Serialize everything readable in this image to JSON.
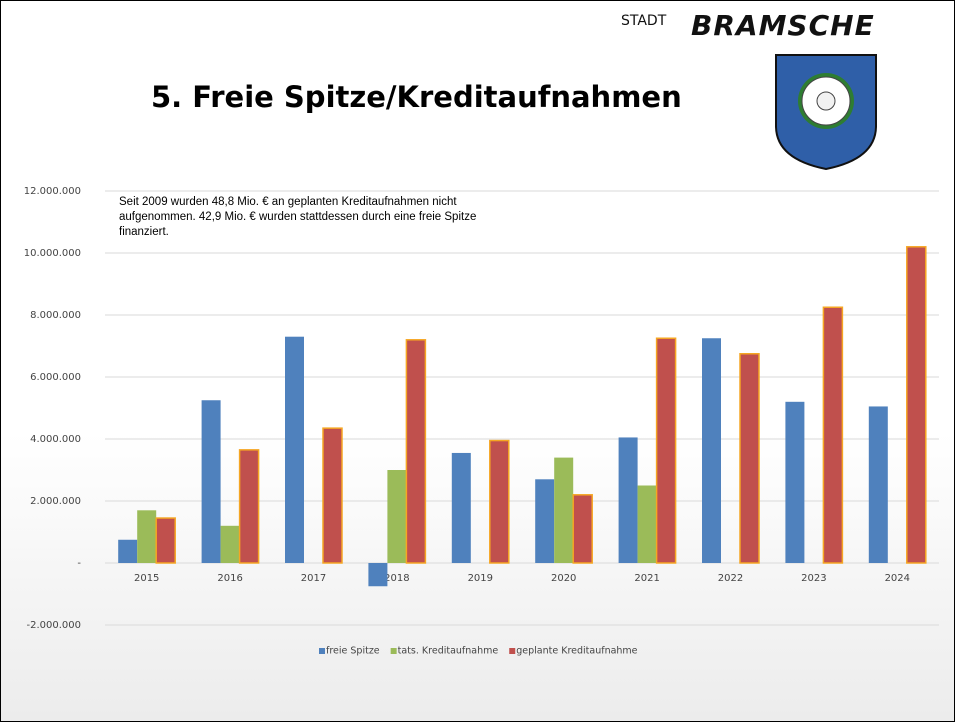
{
  "header": {
    "title": "5. Freie Spitze/Kreditaufnahmen",
    "logo_small": "STADT",
    "logo_large": "BRAMSCHE"
  },
  "chart_data": {
    "type": "bar",
    "annotation": "Seit 2009 wurden 48,8 Mio. € an geplanten Kreditaufnahmen nicht aufgenommen. 42,9 Mio. € wurden stattdessen durch eine freie Spitze finanziert.",
    "categories": [
      "2015",
      "2016",
      "2017",
      "2018",
      "2019",
      "2020",
      "2021",
      "2022",
      "2023",
      "2024"
    ],
    "series": [
      {
        "name": "freie Spitze",
        "color": "#4f81bd",
        "values": [
          750000,
          5250000,
          7300000,
          -750000,
          3550000,
          2700000,
          4050000,
          7250000,
          5200000,
          5050000
        ]
      },
      {
        "name": "tats. Kreditaufnahme",
        "color": "#9bbb59",
        "values": [
          1700000,
          1200000,
          null,
          3000000,
          null,
          3400000,
          2500000,
          null,
          null,
          null
        ]
      },
      {
        "name": "geplante Kreditaufnahme",
        "color": "#c0504d",
        "border": "#f5a623",
        "values": [
          1450000,
          3650000,
          4350000,
          7200000,
          3950000,
          2200000,
          7250000,
          6750000,
          8250000,
          10200000
        ]
      }
    ],
    "ylim": [
      -2000000,
      12000000
    ],
    "yticks": [
      {
        "value": -2000000,
        "label": "-2.000.000"
      },
      {
        "value": 0,
        "label": "-"
      },
      {
        "value": 2000000,
        "label": "2.000.000"
      },
      {
        "value": 4000000,
        "label": "4.000.000"
      },
      {
        "value": 6000000,
        "label": "6.000.000"
      },
      {
        "value": 8000000,
        "label": "8.000.000"
      },
      {
        "value": 10000000,
        "label": "10.000.000"
      },
      {
        "value": 12000000,
        "label": "12.000.000"
      }
    ],
    "grid": true,
    "legend": "bottom"
  }
}
